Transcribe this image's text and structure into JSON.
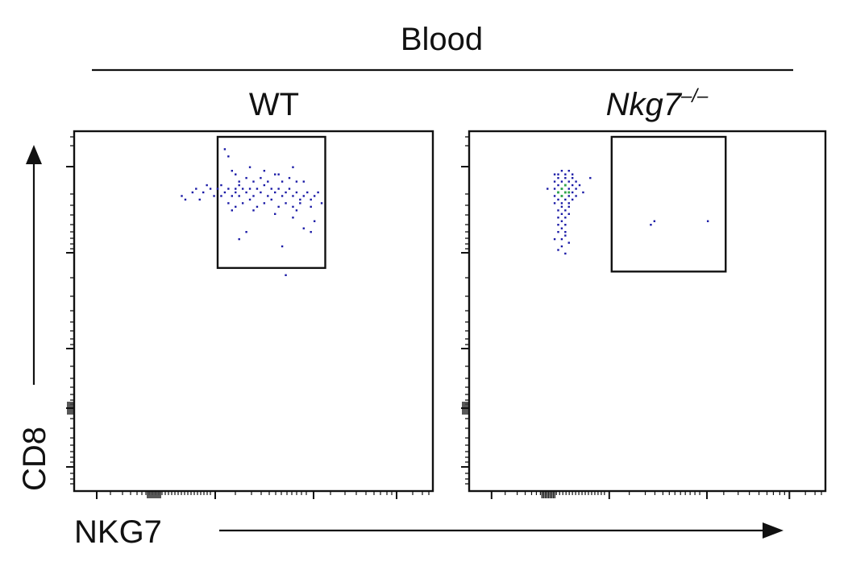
{
  "figure": {
    "group_label": "Blood",
    "x_axis_label": "NKG7",
    "y_axis_label": "CD8"
  },
  "chart_data": [
    {
      "type": "scatter",
      "panel_label": "WT",
      "panel_label_superscript": "",
      "xlabel": "NKG7",
      "ylabel": "CD8",
      "xlim": [
        0,
        100
      ],
      "ylim": [
        0,
        100
      ],
      "grid": false,
      "legend": "none",
      "gate": {
        "x": [
          40,
          70
        ],
        "y": [
          62,
          100
        ]
      },
      "points": [
        [
          42,
          95
        ],
        [
          43,
          93
        ],
        [
          44,
          89
        ],
        [
          45,
          84
        ],
        [
          46,
          82
        ],
        [
          30,
          82
        ],
        [
          31,
          81
        ],
        [
          33,
          83
        ],
        [
          34,
          84
        ],
        [
          35,
          81
        ],
        [
          36,
          83
        ],
        [
          37,
          85
        ],
        [
          38,
          84
        ],
        [
          39,
          82
        ],
        [
          40,
          84
        ],
        [
          41,
          85
        ],
        [
          41,
          82
        ],
        [
          42,
          83
        ],
        [
          43,
          84
        ],
        [
          44,
          82
        ],
        [
          45,
          83
        ],
        [
          46,
          85
        ],
        [
          47,
          84
        ],
        [
          48,
          83
        ],
        [
          49,
          84
        ],
        [
          50,
          82
        ],
        [
          51,
          84
        ],
        [
          52,
          83
        ],
        [
          53,
          85
        ],
        [
          54,
          82
        ],
        [
          55,
          84
        ],
        [
          56,
          83
        ],
        [
          57,
          84
        ],
        [
          58,
          82
        ],
        [
          59,
          83
        ],
        [
          60,
          84
        ],
        [
          61,
          82
        ],
        [
          62,
          83
        ],
        [
          63,
          81
        ],
        [
          64,
          82
        ],
        [
          65,
          83
        ],
        [
          66,
          81
        ],
        [
          67,
          82
        ],
        [
          68,
          83
        ],
        [
          43,
          80
        ],
        [
          45,
          79
        ],
        [
          47,
          80
        ],
        [
          49,
          81
        ],
        [
          51,
          79
        ],
        [
          53,
          80
        ],
        [
          55,
          81
        ],
        [
          57,
          79
        ],
        [
          59,
          80
        ],
        [
          61,
          79
        ],
        [
          63,
          80
        ],
        [
          46,
          86
        ],
        [
          48,
          87
        ],
        [
          50,
          86
        ],
        [
          52,
          87
        ],
        [
          54,
          86
        ],
        [
          56,
          88
        ],
        [
          58,
          86
        ],
        [
          60,
          87
        ],
        [
          62,
          86
        ],
        [
          44,
          78
        ],
        [
          50,
          78
        ],
        [
          56,
          77
        ],
        [
          62,
          78
        ],
        [
          66,
          79
        ],
        [
          69,
          80
        ],
        [
          49,
          90
        ],
        [
          53,
          89
        ],
        [
          57,
          88
        ],
        [
          61,
          90
        ],
        [
          45,
          88
        ],
        [
          64,
          86
        ],
        [
          46,
          70
        ],
        [
          48,
          72
        ],
        [
          58,
          68
        ],
        [
          61,
          76
        ],
        [
          64,
          73
        ],
        [
          66,
          72
        ],
        [
          59,
          60
        ],
        [
          67,
          75
        ]
      ]
    },
    {
      "type": "scatter",
      "panel_label": "Nkg7",
      "panel_label_superscript": "–/–",
      "xlabel": "NKG7",
      "ylabel": "CD8",
      "xlim": [
        0,
        100
      ],
      "ylim": [
        0,
        100
      ],
      "grid": false,
      "legend": "none",
      "gate": {
        "x": [
          40,
          72
        ],
        "y": [
          61,
          100
        ]
      },
      "points": [
        [
          24,
          88
        ],
        [
          25,
          88
        ],
        [
          26,
          89
        ],
        [
          27,
          88
        ],
        [
          28,
          89
        ],
        [
          29,
          88
        ],
        [
          24,
          86
        ],
        [
          25,
          87
        ],
        [
          26,
          86
        ],
        [
          27,
          87
        ],
        [
          28,
          86
        ],
        [
          29,
          87
        ],
        [
          30,
          86
        ],
        [
          24,
          84
        ],
        [
          25,
          85
        ],
        [
          26,
          84
        ],
        [
          27,
          85
        ],
        [
          28,
          84
        ],
        [
          29,
          85
        ],
        [
          30,
          84
        ],
        [
          31,
          85
        ],
        [
          24,
          82
        ],
        [
          25,
          83
        ],
        [
          26,
          82
        ],
        [
          27,
          83
        ],
        [
          28,
          82
        ],
        [
          29,
          83
        ],
        [
          30,
          82
        ],
        [
          24,
          80
        ],
        [
          25,
          81
        ],
        [
          26,
          80
        ],
        [
          27,
          81
        ],
        [
          28,
          80
        ],
        [
          29,
          81
        ],
        [
          25,
          78
        ],
        [
          26,
          79
        ],
        [
          27,
          78
        ],
        [
          28,
          79
        ],
        [
          25,
          76
        ],
        [
          26,
          77
        ],
        [
          27,
          76
        ],
        [
          28,
          77
        ],
        [
          25,
          74
        ],
        [
          26,
          75
        ],
        [
          27,
          74
        ],
        [
          25,
          72
        ],
        [
          26,
          73
        ],
        [
          27,
          72
        ],
        [
          26,
          70
        ],
        [
          27,
          71
        ],
        [
          26,
          68
        ],
        [
          25,
          67
        ],
        [
          27,
          66
        ],
        [
          28,
          69
        ],
        [
          24,
          70
        ],
        [
          22,
          84
        ],
        [
          32,
          83
        ],
        [
          34,
          87
        ],
        [
          52,
          75
        ],
        [
          51,
          74
        ],
        [
          67,
          75
        ]
      ],
      "density_points": [
        [
          26,
          84
        ],
        [
          27,
          83
        ],
        [
          26,
          82
        ],
        [
          27,
          85
        ],
        [
          28,
          83
        ],
        [
          25,
          83
        ]
      ]
    }
  ]
}
